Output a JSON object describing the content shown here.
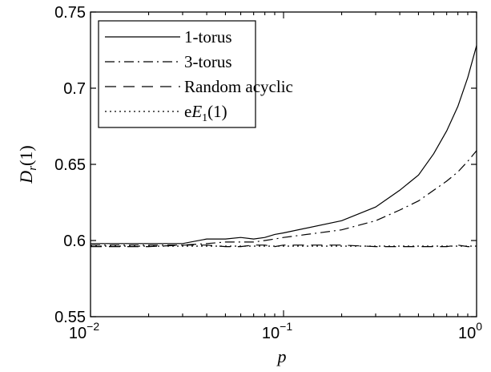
{
  "chart_data": {
    "type": "line",
    "title": "",
    "xlabel": "p",
    "ylabel": "D_r(1)",
    "xscale": "log",
    "xlim": [
      0.01,
      1
    ],
    "ylim": [
      0.55,
      0.75
    ],
    "grid": false,
    "legend_position": "top-left",
    "x_tick_labels": [
      {
        "value": 0.01,
        "base": "10",
        "exp": "−2"
      },
      {
        "value": 0.1,
        "base": "10",
        "exp": "−1"
      },
      {
        "value": 1,
        "base": "10",
        "exp": "0"
      }
    ],
    "y_ticks": [
      0.55,
      0.6,
      0.65,
      0.7,
      0.75
    ],
    "y_tick_labels": [
      "0.55",
      "0.6",
      "0.65",
      "0.7",
      "0.75"
    ],
    "series": [
      {
        "name": "1-torus",
        "style": "solid",
        "x": [
          0.01,
          0.02,
          0.03,
          0.04,
          0.05,
          0.06,
          0.07,
          0.08,
          0.09,
          0.1,
          0.2,
          0.3,
          0.4,
          0.5,
          0.6,
          0.7,
          0.8,
          0.9,
          1.0
        ],
        "y": [
          0.598,
          0.598,
          0.598,
          0.601,
          0.601,
          0.602,
          0.601,
          0.602,
          0.604,
          0.605,
          0.613,
          0.622,
          0.633,
          0.643,
          0.657,
          0.672,
          0.688,
          0.707,
          0.728
        ]
      },
      {
        "name": "3-torus",
        "style": "dashdot",
        "x": [
          0.01,
          0.02,
          0.03,
          0.04,
          0.05,
          0.06,
          0.07,
          0.08,
          0.09,
          0.1,
          0.2,
          0.3,
          0.4,
          0.5,
          0.6,
          0.7,
          0.8,
          0.9,
          1.0
        ],
        "y": [
          0.597,
          0.597,
          0.597,
          0.598,
          0.599,
          0.599,
          0.599,
          0.6,
          0.601,
          0.602,
          0.607,
          0.613,
          0.62,
          0.626,
          0.633,
          0.639,
          0.645,
          0.652,
          0.659
        ]
      },
      {
        "name": "Random acyclic",
        "style": "dashed",
        "x": [
          0.01,
          0.02,
          0.03,
          0.04,
          0.05,
          0.06,
          0.07,
          0.08,
          0.09,
          0.1,
          0.2,
          0.3,
          0.4,
          0.5,
          0.6,
          0.7,
          0.8,
          0.9,
          1.0
        ],
        "y": [
          0.596,
          0.596,
          0.597,
          0.597,
          0.596,
          0.596,
          0.597,
          0.597,
          0.596,
          0.597,
          0.597,
          0.596,
          0.596,
          0.596,
          0.596,
          0.596,
          0.597,
          0.596,
          0.596
        ]
      },
      {
        "name": "eE1(1)",
        "name_display": {
          "prefix": "e",
          "sym": "E",
          "sub": "1",
          "suffix": "(1)"
        },
        "style": "dotted",
        "x": [
          0.01,
          1.0
        ],
        "y": [
          0.5963,
          0.5963
        ]
      }
    ]
  }
}
